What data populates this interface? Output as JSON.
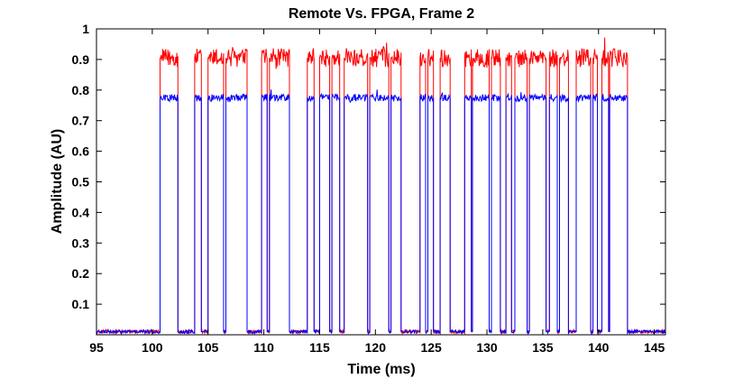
{
  "chart_data": {
    "type": "line",
    "title": "Remote Vs. FPGA, Frame 2",
    "xlabel": "Time (ms)",
    "ylabel": "Amplitude (AU)",
    "xlim": [
      95,
      146
    ],
    "ylim": [
      0,
      1
    ],
    "xticks": [
      95,
      100,
      105,
      110,
      115,
      120,
      125,
      130,
      135,
      140,
      145
    ],
    "yticks": [
      0.1,
      0.2,
      0.3,
      0.4,
      0.5,
      0.6,
      0.7,
      0.8,
      0.9,
      1
    ],
    "ytick_labels": [
      "0.1",
      "0.2",
      "0.3",
      "0.4",
      "0.5",
      "0.6",
      "0.7",
      "0.8",
      "0.9",
      "1"
    ],
    "grid": false,
    "baseline_level": 0.01,
    "pulses": [
      [
        100.7,
        102.3
      ],
      [
        103.8,
        104.4
      ],
      [
        105.0,
        106.4
      ],
      [
        106.6,
        108.5
      ],
      [
        109.8,
        110.3
      ],
      [
        110.5,
        112.3
      ],
      [
        113.9,
        114.5
      ],
      [
        115.0,
        115.9
      ],
      [
        116.1,
        116.8
      ],
      [
        117.2,
        119.3
      ],
      [
        119.5,
        121.2
      ],
      [
        121.4,
        122.3
      ],
      [
        124.0,
        124.5
      ],
      [
        124.7,
        125.2
      ],
      [
        125.8,
        126.7
      ],
      [
        128.0,
        128.6
      ],
      [
        128.7,
        130.2
      ],
      [
        130.4,
        131.2
      ],
      [
        131.7,
        132.2
      ],
      [
        132.5,
        133.6
      ],
      [
        133.8,
        135.3
      ],
      [
        135.6,
        136.3
      ],
      [
        136.5,
        137.3
      ],
      [
        138.0,
        139.3
      ],
      [
        139.5,
        139.9
      ],
      [
        140.3,
        140.9
      ],
      [
        141.0,
        142.6
      ]
    ],
    "series": [
      {
        "name": "Remote",
        "color": "#ff0000",
        "level": 0.905,
        "noise": 0.03
      },
      {
        "name": "FPGA",
        "color": "#0000ff",
        "level": 0.775,
        "noise": 0.012
      }
    ]
  }
}
